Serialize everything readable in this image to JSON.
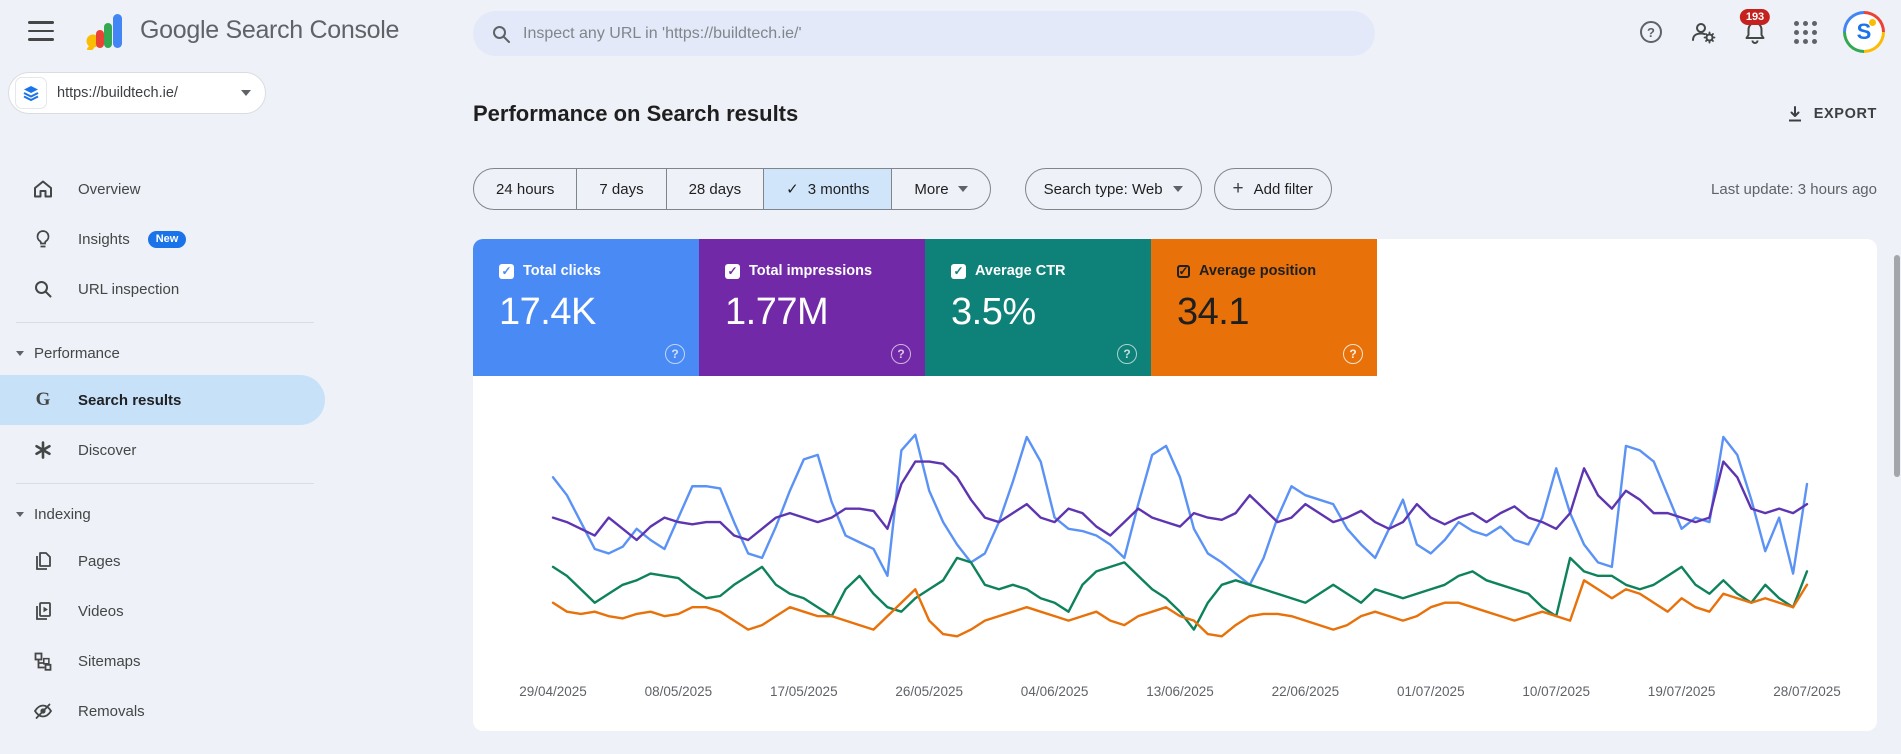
{
  "top_bar": {
    "product_name": "Google Search Console",
    "search_placeholder": "Inspect any URL in 'https://buildtech.ie/'",
    "notification_count": "193",
    "icons": [
      "menu-icon",
      "search-icon",
      "help-icon",
      "manage-users-icon",
      "notifications-icon",
      "apps-grid-icon",
      "avatar"
    ]
  },
  "sidebar": {
    "property": "https://buildtech.ie/",
    "items": [
      {
        "label": "Overview",
        "icon": "home-icon"
      },
      {
        "label": "Insights",
        "icon": "lightbulb-icon",
        "badge": "New"
      },
      {
        "label": "URL inspection",
        "icon": "search-icon"
      },
      {
        "type": "divider"
      },
      {
        "type": "section",
        "label": "Performance"
      },
      {
        "label": "Search results",
        "icon": "google-g-icon",
        "selected": true
      },
      {
        "label": "Discover",
        "icon": "asterisk-icon"
      },
      {
        "type": "divider"
      },
      {
        "type": "section",
        "label": "Indexing"
      },
      {
        "label": "Pages",
        "icon": "pages-icon"
      },
      {
        "label": "Videos",
        "icon": "videos-icon"
      },
      {
        "label": "Sitemaps",
        "icon": "sitemaps-icon"
      },
      {
        "label": "Removals",
        "icon": "removals-icon"
      }
    ]
  },
  "main": {
    "title": "Performance on Search results",
    "export_label": "EXPORT",
    "date_ranges": [
      "24 hours",
      "7 days",
      "28 days",
      "3 months"
    ],
    "selected_range": "3 months",
    "more_label": "More",
    "search_type_label": "Search type: Web",
    "add_filter_label": "Add filter",
    "last_update": "Last update: 3 hours ago"
  },
  "cards": [
    {
      "label": "Total clicks",
      "value": "17.4K",
      "color": "#4a8af4",
      "dark_text": false
    },
    {
      "label": "Total impressions",
      "value": "1.77M",
      "color": "#7229a7",
      "dark_text": false
    },
    {
      "label": "Average CTR",
      "value": "3.5%",
      "color": "#0e8179",
      "dark_text": false
    },
    {
      "label": "Average position",
      "value": "34.1",
      "color": "#e8710a",
      "dark_text": true
    }
  ],
  "chart_data": {
    "type": "line",
    "title": "Performance on Search results (daily, 3 months)",
    "x_tick_labels": [
      "29/04/2025",
      "08/05/2025",
      "17/05/2025",
      "26/05/2025",
      "04/06/2025",
      "13/06/2025",
      "22/06/2025",
      "01/07/2025",
      "10/07/2025",
      "19/07/2025",
      "28/07/2025"
    ],
    "x_range": "29/04/2025 to 28/07/2025, one point per day (91 points)",
    "y_axis": "hidden in UI; series values below are estimated percent of plot height (0 = bottom, 100 = top)",
    "grid": false,
    "legend": "metric tiles above chart act as legend",
    "series": [
      {
        "name": "Total clicks",
        "color": "#5b92f5",
        "total": "17.4K",
        "values": [
          78,
          70,
          58,
          46,
          44,
          47,
          55,
          50,
          46,
          60,
          74,
          74,
          73,
          58,
          44,
          42,
          56,
          72,
          86,
          88,
          67,
          52,
          49,
          46,
          34,
          90,
          97,
          72,
          58,
          48,
          40,
          44,
          58,
          76,
          96,
          85,
          60,
          55,
          54,
          52,
          48,
          42,
          66,
          88,
          92,
          78,
          55,
          44,
          40,
          35,
          30,
          42,
          60,
          74,
          70,
          68,
          66,
          55,
          48,
          42,
          55,
          68,
          48,
          44,
          50,
          58,
          54,
          52,
          56,
          50,
          48,
          60,
          82,
          62,
          48,
          40,
          38,
          92,
          90,
          85,
          70,
          55,
          60,
          58,
          96,
          88,
          68,
          45,
          60,
          35,
          75
        ]
      },
      {
        "name": "Total impressions",
        "color": "#5e35b1",
        "total": "1.77M",
        "values": [
          60,
          58,
          55,
          52,
          60,
          55,
          50,
          56,
          60,
          58,
          57,
          58,
          58,
          52,
          50,
          55,
          60,
          62,
          60,
          58,
          60,
          64,
          64,
          63,
          55,
          75,
          85,
          85,
          84,
          78,
          68,
          60,
          58,
          62,
          66,
          60,
          58,
          64,
          62,
          56,
          52,
          58,
          64,
          60,
          58,
          56,
          62,
          60,
          59,
          62,
          70,
          64,
          58,
          60,
          66,
          62,
          58,
          60,
          63,
          58,
          55,
          58,
          66,
          60,
          57,
          60,
          62,
          58,
          62,
          65,
          60,
          58,
          55,
          62,
          82,
          70,
          64,
          72,
          68,
          62,
          62,
          60,
          58,
          60,
          85,
          78,
          64,
          62,
          64,
          62,
          66
        ]
      },
      {
        "name": "Average CTR",
        "color": "#0e825a",
        "total": "3.5%",
        "values": [
          38,
          34,
          28,
          22,
          26,
          30,
          32,
          35,
          34,
          33,
          28,
          24,
          25,
          30,
          34,
          38,
          30,
          26,
          24,
          20,
          16,
          28,
          34,
          26,
          20,
          18,
          24,
          28,
          32,
          42,
          40,
          30,
          28,
          30,
          28,
          24,
          22,
          18,
          30,
          36,
          38,
          40,
          34,
          28,
          24,
          18,
          10,
          22,
          30,
          32,
          30,
          28,
          26,
          24,
          22,
          26,
          30,
          26,
          22,
          28,
          26,
          24,
          26,
          28,
          30,
          34,
          36,
          32,
          30,
          28,
          26,
          20,
          16,
          42,
          36,
          34,
          34,
          30,
          28,
          30,
          34,
          38,
          30,
          26,
          32,
          26,
          22,
          30,
          24,
          20,
          36
        ]
      },
      {
        "name": "Average position",
        "color": "#e8710a",
        "total": "34.1",
        "values": [
          22,
          18,
          17,
          18,
          16,
          15,
          17,
          18,
          16,
          17,
          20,
          20,
          18,
          14,
          10,
          12,
          16,
          20,
          18,
          16,
          16,
          14,
          12,
          10,
          16,
          22,
          28,
          14,
          8,
          7,
          10,
          14,
          16,
          18,
          20,
          18,
          16,
          14,
          16,
          18,
          14,
          12,
          16,
          18,
          20,
          16,
          14,
          8,
          7,
          12,
          16,
          17,
          17,
          16,
          14,
          12,
          10,
          12,
          16,
          18,
          16,
          14,
          16,
          20,
          22,
          22,
          20,
          18,
          16,
          14,
          16,
          18,
          16,
          14,
          32,
          28,
          24,
          28,
          26,
          22,
          18,
          24,
          20,
          18,
          26,
          24,
          22,
          24,
          22,
          20,
          30
        ]
      }
    ]
  }
}
